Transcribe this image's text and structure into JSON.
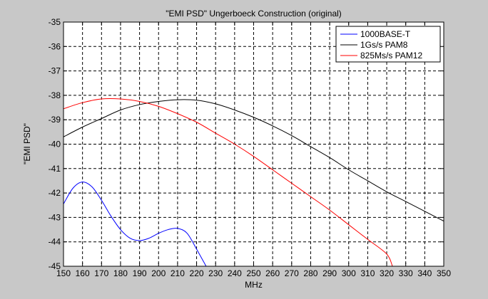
{
  "chart_data": {
    "type": "line",
    "title": "\"EMI PSD\" Ungerboeck Construction (original)",
    "xlabel": "MHz",
    "ylabel": "\"EMI PSD\"",
    "xlim": [
      150,
      350
    ],
    "ylim": [
      -45,
      -35
    ],
    "xticks": [
      150,
      160,
      170,
      180,
      190,
      200,
      210,
      220,
      230,
      240,
      250,
      260,
      270,
      280,
      290,
      300,
      310,
      320,
      330,
      340,
      350
    ],
    "yticks": [
      -35,
      -36,
      -37,
      -38,
      -39,
      -40,
      -41,
      -42,
      -43,
      -44,
      -45
    ],
    "grid": true,
    "legend_position": "top-right",
    "colors": {
      "figure_background": "#c8c8c8",
      "plot_background": "#ffffff",
      "axes": "#000000"
    },
    "series": [
      {
        "name": "1000BASE-T",
        "color": "#0000ff",
        "x": [
          150,
          155,
          160,
          165,
          170,
          175,
          180,
          185,
          190,
          195,
          200,
          205,
          210,
          215,
          220,
          225
        ],
        "y": [
          -42.45,
          -41.8,
          -41.55,
          -41.75,
          -42.3,
          -42.95,
          -43.5,
          -43.85,
          -43.95,
          -43.85,
          -43.65,
          -43.5,
          -43.45,
          -43.65,
          -44.3,
          -45.0
        ]
      },
      {
        "name": "1Gs/s PAM8",
        "color": "#000000",
        "x": [
          150,
          160,
          170,
          180,
          190,
          200,
          210,
          220,
          230,
          240,
          250,
          260,
          270,
          280,
          290,
          300,
          310,
          320,
          330,
          340,
          350
        ],
        "y": [
          -39.7,
          -39.3,
          -38.95,
          -38.6,
          -38.38,
          -38.25,
          -38.18,
          -38.2,
          -38.35,
          -38.6,
          -38.9,
          -39.25,
          -39.65,
          -40.1,
          -40.55,
          -41.05,
          -41.5,
          -41.95,
          -42.35,
          -42.75,
          -43.15
        ]
      },
      {
        "name": "825Ms/s PAM12",
        "color": "#ff0000",
        "x": [
          150,
          160,
          170,
          180,
          190,
          200,
          210,
          220,
          230,
          240,
          250,
          260,
          270,
          280,
          290,
          300,
          310,
          320,
          323
        ],
        "y": [
          -38.55,
          -38.3,
          -38.15,
          -38.15,
          -38.25,
          -38.45,
          -38.75,
          -39.1,
          -39.55,
          -40.0,
          -40.5,
          -41.05,
          -41.6,
          -42.15,
          -42.7,
          -43.3,
          -43.9,
          -44.5,
          -45.0
        ]
      }
    ]
  }
}
